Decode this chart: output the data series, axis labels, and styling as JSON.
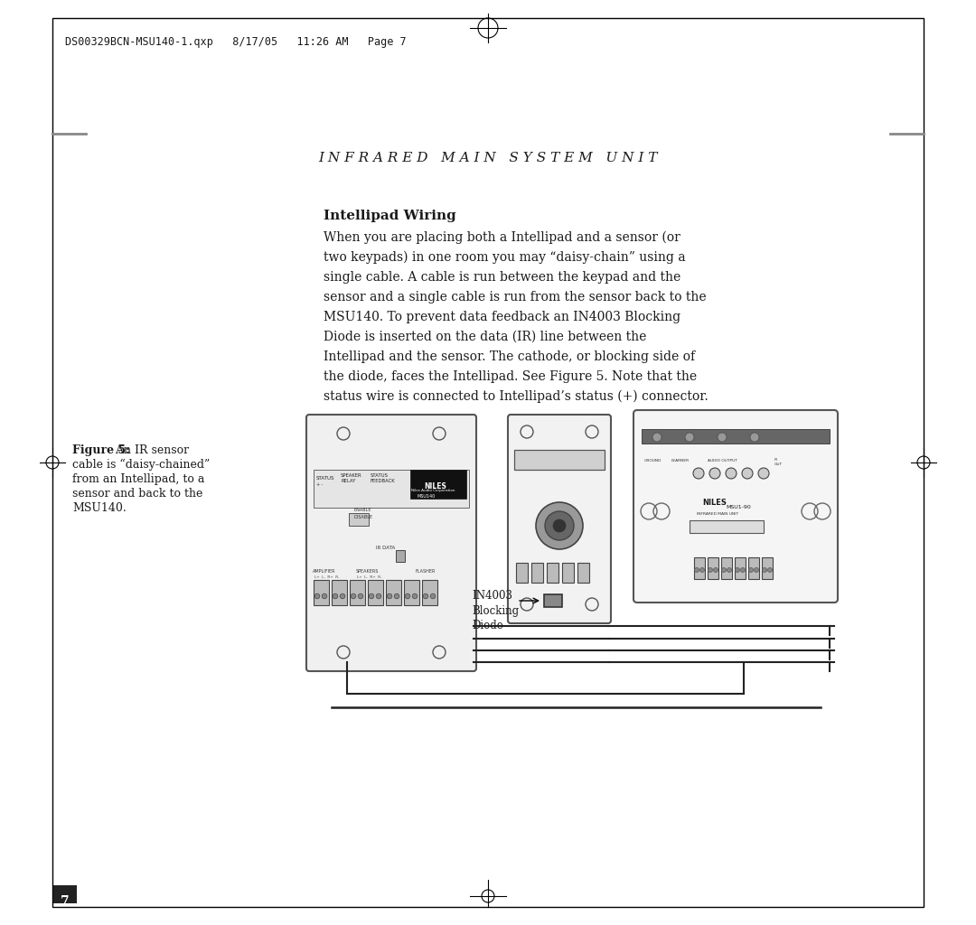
{
  "bg_color": "#ffffff",
  "border_color": "#000000",
  "header_text": "DS00329BCN-MSU140-1.qxp   8/17/05   11:26 AM   Page 7",
  "title_text": "I N F R A R E D   M A I N   S Y S T E M   U N I T",
  "section_title": "Intellipad Wiring",
  "body_lines": [
    "When you are placing both a Intellipad and a sensor (or",
    "two keypads) in one room you may “daisy-chain” using a",
    "single cable. A cable is run between the keypad and the",
    "sensor and a single cable is run from the sensor back to the",
    "MSU140. To prevent data feedback an IN4003 Blocking",
    "Diode is inserted on the data (IR) line between the",
    "Intellipad and the sensor. The cathode, or blocking side of",
    "the diode, faces the Intellipad. See Figure 5. Note that the",
    "status wire is connected to Intellipad’s status (+) connector."
  ],
  "figure_caption_bold": "Figure 5:",
  "figure_caption_rest": " An IR sensor",
  "figure_caption_lines": [
    "cable is “daisy-chained”",
    "from an Intellipad, to a",
    "sensor and back to the",
    "MSU140."
  ],
  "page_number": "7",
  "text_color": "#1a1a1a",
  "gray_color": "#888888",
  "wire_color": "#222222"
}
